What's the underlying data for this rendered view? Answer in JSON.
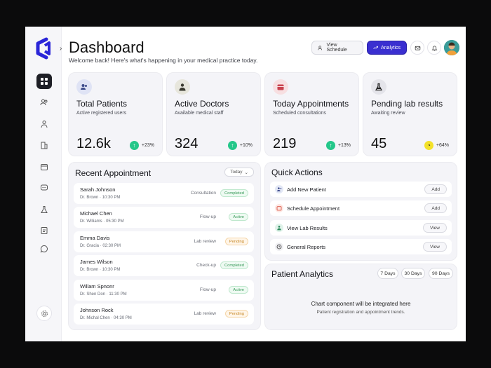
{
  "header": {
    "title": "Dashboard",
    "subtitle": "Welcome back! Here's what's happening in your medical practice today.",
    "view_schedule": "View Schedule",
    "analytics": "Analytics"
  },
  "sidebar": {
    "items": [
      "grid-icon",
      "users-icon",
      "doctor-icon",
      "building-icon",
      "calendar-icon",
      "chat-dots-icon",
      "flask-icon",
      "report-icon",
      "message-icon"
    ],
    "settings": "gear-icon"
  },
  "stats": [
    {
      "label": "Total Patients",
      "sub": "Active registered users",
      "value": "12.6k",
      "trend": "+23%",
      "icon": "users-icon",
      "icon_bg": "#dfe3f5",
      "trend_color": "#24c78a"
    },
    {
      "label": "Active Doctors",
      "sub": "Available medical staff",
      "value": "324",
      "trend": "+10%",
      "icon": "doctor-icon",
      "icon_bg": "#e7e6dc",
      "trend_color": "#24c78a"
    },
    {
      "label": "Today Appointments",
      "sub": "Scheduled consultations",
      "value": "219",
      "trend": "+13%",
      "icon": "calendar-icon",
      "icon_bg": "#f7dfe1",
      "trend_color": "#24c78a"
    },
    {
      "label": "Pending lab results",
      "sub": "Awaiting review",
      "value": "45",
      "trend": "+64%",
      "icon": "flask-icon",
      "icon_bg": "#e4e4ea",
      "trend_color": "#f3e12a"
    }
  ],
  "recent": {
    "title": "Recent Appointment",
    "filter": "Today",
    "items": [
      {
        "name": "Sarah Johnson",
        "doctor": "Dr. Brown · 10:30 PM",
        "type": "Consultation",
        "status": "Completed",
        "kind": "green"
      },
      {
        "name": "Michael Chen",
        "doctor": "Dr. Williams · 05:30 PM",
        "type": "Flow-up",
        "status": "Active",
        "kind": "green"
      },
      {
        "name": "Emma Davis",
        "doctor": "Dr. Gracia · 02:30 PM",
        "type": "Lab review",
        "status": "Pending",
        "kind": "orange"
      },
      {
        "name": "James Wilson",
        "doctor": "Dr. Brown · 10:30 PM",
        "type": "Check-up",
        "status": "Completed",
        "kind": "green"
      },
      {
        "name": "Willam Spnonr",
        "doctor": "Dr. Shen Don · 11:30 PM",
        "type": "Flow-up",
        "status": "Active",
        "kind": "green"
      },
      {
        "name": "Johnson Rock",
        "doctor": "Dr. Michal Chen · 04:30 PM",
        "type": "Lab review",
        "status": "Pending",
        "kind": "orange"
      }
    ]
  },
  "quick": {
    "title": "Quick Actions",
    "items": [
      {
        "label": "Add New Patient",
        "button": "Add",
        "icon": "add-user-icon",
        "icon_bg": "#e3e8f6"
      },
      {
        "label": "Schedule Appointment",
        "button": "Add",
        "icon": "calendar-icon",
        "icon_bg": "#fde7e3"
      },
      {
        "label": "View Lab Results",
        "button": "View",
        "icon": "doctor-icon",
        "icon_bg": "#e0f3ea"
      },
      {
        "label": "General Reports",
        "button": "View",
        "icon": "clock-icon",
        "icon_bg": "#f0f0f3"
      }
    ]
  },
  "analytics": {
    "title": "Patient Analytics",
    "ranges": [
      "7 Days",
      "30 Days",
      "90 Days"
    ],
    "placeholder": "Chart component will be integrated here",
    "placeholder_sub": "Patient registration and appointment trends."
  },
  "colors": {
    "accent": "#3a2fd0",
    "logo": "#2a25d8",
    "green": "#24c78a"
  }
}
